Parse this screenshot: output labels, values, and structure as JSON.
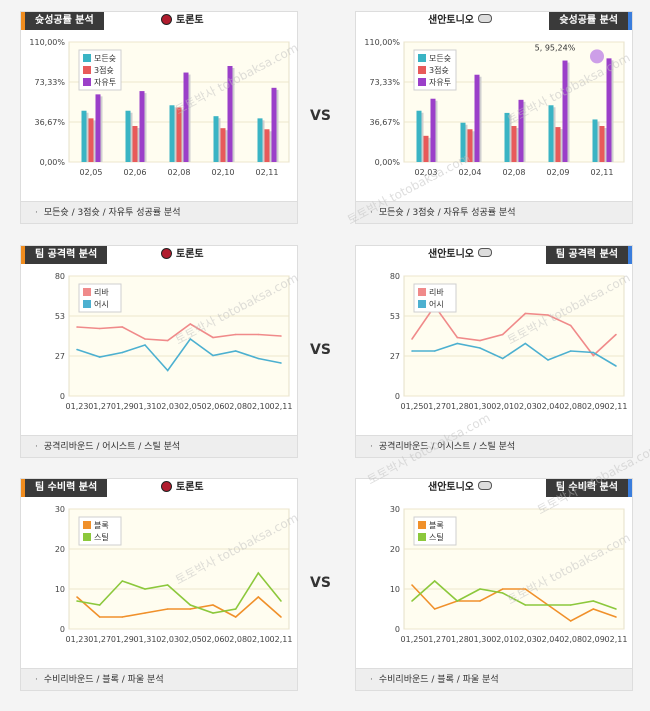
{
  "vs_label": "VS",
  "panels": [
    {
      "id": "p1",
      "left": true,
      "tab": "슛성공률 분석",
      "team": "토론토",
      "footer": "모든슛 / 3점슛 / 자유투 성공률 분석",
      "chart_data": {
        "type": "bar",
        "categories": [
          "02,05",
          "02,06",
          "02,08",
          "02,10",
          "02,11"
        ],
        "yticks": [
          "110,00%",
          "73,33%",
          "36,67%",
          "0,00%"
        ],
        "ylim": [
          0,
          110
        ],
        "series": [
          {
            "name": "모든슛",
            "color": "#3ab4c4",
            "values": [
              47,
              47,
              52,
              42,
              40
            ]
          },
          {
            "name": "3점슛",
            "color": "#e85a5a",
            "values": [
              40,
              33,
              50,
              31,
              30
            ]
          },
          {
            "name": "자유투",
            "color": "#9b3fc9",
            "values": [
              62,
              65,
              82,
              88,
              68
            ]
          }
        ]
      }
    },
    {
      "id": "p2",
      "left": false,
      "tab": "슛성공률 분석",
      "team": "샌안토니오",
      "footer": "모든슛 / 3점슛 / 자유투 성공률 분석",
      "chart_data": {
        "type": "bar",
        "categories": [
          "02,03",
          "02,04",
          "02,08",
          "02,09",
          "02,11"
        ],
        "yticks": [
          "110,00%",
          "73,33%",
          "36,67%",
          "0,00%"
        ],
        "ylim": [
          0,
          110
        ],
        "annotation": "5, 95,24%",
        "series": [
          {
            "name": "모든슛",
            "color": "#3ab4c4",
            "values": [
              47,
              36,
              45,
              52,
              39
            ]
          },
          {
            "name": "3점슛",
            "color": "#e85a5a",
            "values": [
              24,
              30,
              33,
              32,
              33
            ]
          },
          {
            "name": "자유투",
            "color": "#9b3fc9",
            "values": [
              58,
              80,
              57,
              93,
              95
            ]
          }
        ]
      }
    },
    {
      "id": "p3",
      "left": true,
      "tab": "팀 공격력 분석",
      "team": "토론토",
      "footer": "공격리바운드 / 어시스트 / 스틸 분석",
      "chart_data": {
        "type": "line",
        "categories": [
          "01,23",
          "01,27",
          "01,29",
          "01,31",
          "02,03",
          "02,05",
          "02,06",
          "02,08",
          "02,10",
          "02,11"
        ],
        "yticks": [
          "80",
          "53",
          "27",
          "0"
        ],
        "ylim": [
          0,
          80
        ],
        "series": [
          {
            "name": "리바",
            "color": "#f08a8a",
            "values": [
              46,
              45,
              46,
              38,
              37,
              48,
              39,
              41,
              41,
              40
            ]
          },
          {
            "name": "어시",
            "color": "#4cb0d0",
            "values": [
              31,
              26,
              29,
              34,
              17,
              38,
              27,
              30,
              25,
              22
            ]
          }
        ]
      }
    },
    {
      "id": "p4",
      "left": false,
      "tab": "팀 공격력 분석",
      "team": "샌안토니오",
      "footer": "공격리바운드 / 어시스트 / 스틸 분석",
      "chart_data": {
        "type": "line",
        "categories": [
          "01,25",
          "01,27",
          "01,28",
          "01,30",
          "02,01",
          "02,03",
          "02,04",
          "02,08",
          "02,09",
          "02,11"
        ],
        "yticks": [
          "80",
          "53",
          "27",
          "0"
        ],
        "ylim": [
          0,
          80
        ],
        "series": [
          {
            "name": "리바",
            "color": "#f08a8a",
            "values": [
              38,
              60,
              39,
              37,
              41,
              55,
              54,
              47,
              27,
              41
            ]
          },
          {
            "name": "어시",
            "color": "#4cb0d0",
            "values": [
              30,
              30,
              35,
              32,
              25,
              35,
              24,
              30,
              29,
              20
            ]
          }
        ]
      }
    },
    {
      "id": "p5",
      "left": true,
      "tab": "팀 수비력 분석",
      "team": "토론토",
      "footer": "수비리바운드 / 블록 / 파울 분석",
      "chart_data": {
        "type": "line",
        "categories": [
          "01,23",
          "01,27",
          "01,29",
          "01,31",
          "02,03",
          "02,05",
          "02,06",
          "02,08",
          "02,10",
          "02,11"
        ],
        "yticks": [
          "30",
          "20",
          "10",
          "0"
        ],
        "ylim": [
          0,
          30
        ],
        "series": [
          {
            "name": "블록",
            "color": "#f0902a",
            "values": [
              8,
              3,
              3,
              4,
              5,
              5,
              6,
              3,
              8,
              3
            ]
          },
          {
            "name": "스틸",
            "color": "#8cc83c",
            "values": [
              7,
              6,
              12,
              10,
              11,
              6,
              4,
              5,
              14,
              7
            ]
          }
        ]
      }
    },
    {
      "id": "p6",
      "left": false,
      "tab": "팀 수비력 분석",
      "team": "샌안토니오",
      "footer": "수비리바운드 / 블록 / 파울 분석",
      "chart_data": {
        "type": "line",
        "categories": [
          "01,25",
          "01,27",
          "01,28",
          "01,30",
          "02,01",
          "02,03",
          "02,04",
          "02,08",
          "02,09",
          "02,11"
        ],
        "yticks": [
          "30",
          "20",
          "10",
          "0"
        ],
        "ylim": [
          0,
          30
        ],
        "series": [
          {
            "name": "블록",
            "color": "#f0902a",
            "values": [
              11,
              5,
              7,
              7,
              10,
              10,
              6,
              2,
              5,
              3
            ]
          },
          {
            "name": "스틸",
            "color": "#8cc83c",
            "values": [
              7,
              12,
              7,
              10,
              9,
              6,
              6,
              6,
              7,
              5
            ]
          }
        ]
      }
    }
  ],
  "watermark": "토토박사 totobaksa.com"
}
